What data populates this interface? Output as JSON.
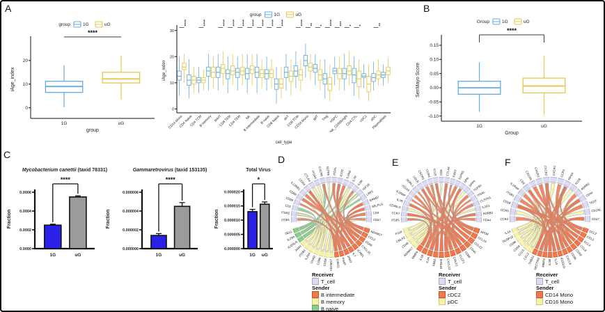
{
  "panels": {
    "a": "A",
    "b": "B",
    "c": "C",
    "d": "D",
    "e": "E",
    "f": "F"
  },
  "colors": {
    "box_blue": "#63acde",
    "box_gold": "#e8c84a",
    "bar_blue": "#2b20e8",
    "bar_gray": "#9b9b9b",
    "tcell_fill": "#dcdcf0",
    "tcell_border": "#a8a8cc",
    "orange_fill": "#f0784e",
    "orange_border": "#c8552e",
    "yellow_fill": "#f7f2ab",
    "yellow_border": "#cfc781",
    "green_fill": "#90cb8e",
    "green_border": "#68a866"
  },
  "chart_data": {
    "a_left": {
      "type": "boxplot",
      "legend_title": "group",
      "legend_items": [
        "1G",
        "uG"
      ],
      "ylabel": "iAge_index",
      "xlabel": "group",
      "yticks": [
        0,
        10,
        20
      ],
      "ytick_labels": [
        "0",
        "10",
        "20"
      ],
      "ylim": [
        -4.5,
        28.5
      ],
      "categories": [
        "1G",
        "uG"
      ],
      "boxes": [
        {
          "group": "1G",
          "low": 0.2,
          "q1": 6.5,
          "median": 9,
          "q3": 11.2,
          "high": 18
        },
        {
          "group": "uG",
          "low": 3.5,
          "q1": 10.5,
          "median": 12.2,
          "q3": 15,
          "high": 22
        }
      ],
      "significance": "****"
    },
    "a_right": {
      "type": "grouped_boxplot",
      "legend_title": "group",
      "legend_items": [
        "1G",
        "uG"
      ],
      "ylabel": "iAge_index",
      "xlabel": "cell_type",
      "yticks": [
        0,
        10,
        20,
        30
      ],
      "ylim": [
        -1.5,
        31
      ],
      "categories": [
        "CD14 Mono",
        "CD4 Naive",
        "CD4 TCM",
        "B memory",
        "MAIT",
        "CD8 TEM",
        "CD4 TEM",
        "NK",
        "B intermediate",
        "B naive",
        "CD8 Naive",
        "dnT",
        "CD8 TCM",
        "CD16 Mono",
        "gdT",
        "Treg",
        "HSPC",
        "NK_CD56bright",
        "CD4 CTL",
        "cDC2",
        "pDC",
        "Plasmablast"
      ],
      "significance": [
        "****",
        "",
        "****",
        "",
        "****",
        "****",
        "****",
        "****",
        "****",
        "****",
        "****",
        "",
        "****",
        "**",
        "*",
        "****",
        "***",
        "*",
        "*",
        "",
        "**",
        ""
      ],
      "series": [
        {
          "name": "1G",
          "boxes": [
            [
              5,
              11,
              12.5,
              14.5,
              20
            ],
            [
              4,
              9,
              11,
              13,
              19
            ],
            [
              6,
              10,
              11,
              12,
              16
            ],
            [
              7,
              12.5,
              14.5,
              16,
              21
            ],
            [
              7,
              12,
              14,
              16,
              21
            ],
            [
              6,
              11.5,
              13.5,
              15,
              20
            ],
            [
              7,
              12,
              14,
              15.5,
              20
            ],
            [
              6,
              11.5,
              13.5,
              15.5,
              21
            ],
            [
              6,
              12,
              14,
              16,
              21
            ],
            [
              7,
              11.5,
              13.5,
              15,
              20
            ],
            [
              2,
              7.5,
              9.5,
              11.5,
              16
            ],
            [
              7,
              12,
              14,
              16,
              21
            ],
            [
              8,
              12.5,
              14.5,
              16.5,
              22
            ],
            [
              12,
              16.5,
              18.5,
              20.5,
              25
            ],
            [
              9,
              14,
              15.5,
              17,
              21
            ],
            [
              4,
              9.5,
              11.5,
              13.5,
              19
            ],
            [
              9,
              13.5,
              14.5,
              15.5,
              20
            ],
            [
              7,
              11.5,
              13.5,
              15.5,
              21
            ],
            [
              5,
              10,
              13,
              15.5,
              20
            ],
            [
              8,
              12,
              12.5,
              13.5,
              17
            ],
            [
              7,
              10.5,
              12,
              13.5,
              18
            ],
            [
              9,
              12,
              13,
              14,
              17
            ]
          ]
        },
        {
          "name": "uG",
          "boxes": [
            [
              10,
              15,
              16,
              17.5,
              21
            ],
            [
              6,
              9.5,
              11,
              12.5,
              16
            ],
            [
              7,
              10,
              11,
              12,
              15
            ],
            [
              8,
              12,
              14,
              16,
              20
            ],
            [
              9,
              13.5,
              15.5,
              17,
              22
            ],
            [
              9,
              13,
              14.5,
              16.5,
              21
            ],
            [
              9,
              13,
              14.5,
              16,
              21
            ],
            [
              9,
              13.5,
              15,
              16.5,
              21
            ],
            [
              8,
              12,
              13.5,
              15,
              19
            ],
            [
              8,
              12,
              13.5,
              15,
              19
            ],
            [
              4,
              8,
              9.5,
              11.5,
              16
            ],
            [
              5,
              10.5,
              12.5,
              14.5,
              19
            ],
            [
              7,
              11,
              13,
              15,
              19
            ],
            [
              11,
              14.5,
              16,
              17.5,
              21
            ],
            [
              7,
              11,
              13,
              15,
              19
            ],
            [
              3,
              7,
              9.5,
              12,
              17
            ],
            [
              7,
              11.5,
              13.5,
              15.5,
              20
            ],
            [
              9,
              13,
              14.5,
              16.5,
              22
            ],
            [
              4,
              8.5,
              11.5,
              14.5,
              19
            ],
            [
              3,
              6.5,
              9.5,
              12.5,
              17
            ],
            [
              9,
              11.5,
              13,
              14.5,
              19
            ],
            [
              10,
              13,
              14.5,
              16,
              19.5
            ]
          ]
        }
      ]
    },
    "b": {
      "type": "boxplot",
      "legend_title": "Group",
      "legend_items": [
        "1G",
        "uG"
      ],
      "ylabel": "SenMayo Score",
      "xlabel": "Group",
      "yticks": [
        -0.1,
        -0.05,
        0.0,
        0.05,
        0.1,
        0.15
      ],
      "ytick_labels": [
        "-0.10",
        "-0.05",
        "0.00",
        "0.05",
        "0.10",
        "0.15"
      ],
      "ylim": [
        -0.118,
        0.172
      ],
      "categories": [
        "1G",
        "uG"
      ],
      "boxes": [
        {
          "group": "1G",
          "low": -0.085,
          "q1": -0.023,
          "median": 0.0,
          "q3": 0.023,
          "high": 0.09
        },
        {
          "group": "uG",
          "low": -0.095,
          "q1": -0.018,
          "median": 0.006,
          "q3": 0.034,
          "high": 0.112
        }
      ],
      "significance": "****"
    },
    "c": [
      {
        "type": "bar",
        "title_italic": "Mycobacterium canettii",
        "title_rest": " (taxid 78331)",
        "ylabel": "Fraction",
        "categories": [
          "1G",
          "uG"
        ],
        "values": [
          0.00025,
          0.00055
        ],
        "errors": [
          1e-05,
          1.2e-05
        ],
        "yticks": [
          0,
          0.0002,
          0.0004,
          0.0006
        ],
        "ytick_labels": [
          "0.0000",
          "0.0002",
          "0.0004",
          "0.0006"
        ],
        "ylim": [
          0,
          0.00063
        ],
        "significance": "****"
      },
      {
        "type": "bar",
        "title_italic": "Gammaretrovirus",
        "title_rest": " (taxid 153135)",
        "ylabel": "Fraction",
        "categories": [
          "1G",
          "uG"
        ],
        "values": [
          1.4e-06,
          4.5e-06
        ],
        "errors": [
          2e-07,
          4e-07
        ],
        "yticks": [
          0,
          2e-06,
          4e-06,
          6e-06
        ],
        "ytick_labels": [
          "0.000000",
          "0.000002",
          "0.000004",
          "0.000006"
        ],
        "ylim": [
          0,
          6.3e-06
        ],
        "significance": "****"
      },
      {
        "type": "bar",
        "title_italic": "",
        "title_rest": "Total Virus",
        "ylabel": "Fraction",
        "categories": [
          "1G",
          "uG"
        ],
        "values": [
          1.3e-05,
          1.56e-05
        ],
        "errors": [
          8e-07,
          8e-07
        ],
        "yticks": [
          0,
          5e-06,
          1e-05,
          1.5e-05,
          2e-05
        ],
        "ytick_labels": [
          "0.000000",
          "0.000005",
          "0.000010",
          "0.000015",
          "0.000020"
        ],
        "ylim": [
          0,
          2.08e-05
        ],
        "significance": "*"
      }
    ],
    "chords": {
      "d": {
        "type": "chord",
        "legend": {
          "receiver_label": "Receiver",
          "sender_label": "Sender"
        },
        "receiver": {
          "name": "T_cell",
          "fill_key": "tcell",
          "genes": [
            "ITGB1",
            "ITGB2",
            "CD2",
            "CD28",
            "CD99",
            "IL12RB1",
            "CCR4",
            "CTLA4",
            "ITGA4",
            "CXCR6",
            "S1PR5",
            "ITGAL",
            "ICOS",
            "IL2RG",
            "IL7R",
            "IL6R",
            "IGF1R",
            "LRP1",
            "ERBB2",
            "SELPLG",
            "CD4",
            "CD47"
          ]
        },
        "senders": [
          {
            "name": "B naive",
            "fill_key": "green",
            "genes": [
              "SELL",
              "IL23A",
              "ICOSLG"
            ]
          },
          {
            "name": "B memory",
            "fill_key": "yellow",
            "genes": [
              "JAM3",
              "ITGB1",
              "IL23A",
              "CHAD",
              "CD99",
              "CD58",
              "ADAM17"
            ]
          },
          {
            "name": "B intermediate",
            "fill_key": "orange",
            "genes": [
              "THBS1",
              "PSAP",
              "JAM3",
              "IL7",
              "ICAM1",
              "CXCL16",
              "CD99",
              "CCL2",
              "ADAM17"
            ]
          }
        ]
      },
      "e": {
        "type": "chord",
        "legend": {
          "receiver_label": "Receiver",
          "sender_label": "Sender"
        },
        "receiver": {
          "name": "T_cell",
          "fill_key": "tcell",
          "genes": [
            "ITGB1",
            "CCR7",
            "CD40LG",
            "IL7R",
            "IL1RAP",
            "ITGA4",
            "SORL1",
            "LDLR",
            "CXCR3",
            "CCR4",
            "ICOS",
            "CD6",
            "CTLA4",
            "IL6ST",
            "S1PR5",
            "SPN",
            "DPP4",
            "TGFB1",
            "ITGAL",
            "CLSTN1",
            "IL1R1",
            "ADRB2",
            "CD44"
          ]
        },
        "senders": [
          {
            "name": "pDC",
            "fill_key": "yellow",
            "genes": [
              "F11R",
              "CRLF2",
              "CD40",
              "ADAM17"
            ]
          },
          {
            "name": "cDC2",
            "fill_key": "orange",
            "genes": [
              "MMP9",
              "IL1B",
              "IL1A",
              "FBN1",
              "EFNA5",
              "CXCL13",
              "CRLF2",
              "CLCF1",
              "CD86",
              "CD40",
              "CCL22",
              "CCL19",
              "APOE"
            ]
          }
        ]
      },
      "f": {
        "type": "chord",
        "legend": {
          "receiver_label": "Receiver",
          "sender_label": "Sender"
        },
        "receiver": {
          "name": "T_cell",
          "fill_key": "tcell",
          "genes": [
            "CCR4",
            "CCR5",
            "CD28",
            "ITGB1",
            "IL1RAP",
            "CD2",
            "CXCR5",
            "CXCR3",
            "CXCR2",
            "CXCR1",
            "CCR1",
            "RPSA",
            "ICOS",
            "ADRB2",
            "CD44",
            "TIGIT",
            "CD226",
            "CD47"
          ]
        },
        "senders": [
          {
            "name": "CD16 Mono",
            "fill_key": "yellow",
            "genes": [
              "IL1A",
              "DUSP18",
              "CD86",
              "CD58",
              "CCL5",
              "CCL2"
            ]
          },
          {
            "name": "CD14 Mono",
            "fill_key": "orange",
            "genes": [
              "THBS1",
              "NECTIN2",
              "MMP9",
              "IL1B",
              "IL1A",
              "ICOSLG",
              "CXCL8",
              "CD86",
              "CD58",
              "CCL8",
              "CCL4",
              "CCL3",
              "CCL2"
            ]
          }
        ]
      }
    }
  }
}
